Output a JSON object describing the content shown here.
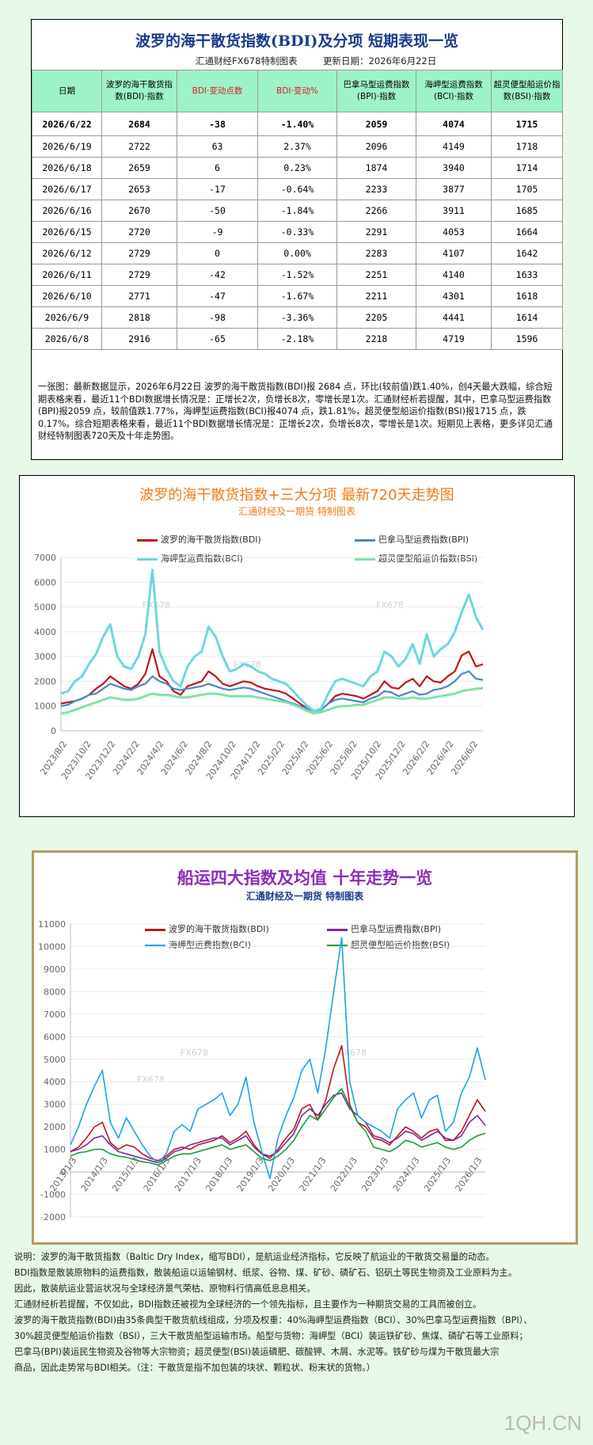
{
  "table_panel": {
    "title": "波罗的海干散货指数(BDI)及分项 短期表现一览",
    "maker": "汇通财经FX678特制图表",
    "update_date": "更新日期：2026年6月22日",
    "headers": [
      "日期",
      "波罗的海干散货指数(BDI)·指数",
      "BDI·变动点数",
      "BDI·变动%",
      "巴拿马型运费指数(BPI)·指数",
      "海岬型运费指数(BCI)·指数",
      "超灵便型船运价指数(BSI)·指数"
    ],
    "rows": [
      [
        "2026/6/22",
        "2684",
        "-38",
        "-1.40%",
        "2059",
        "4074",
        "1715"
      ],
      [
        "2026/6/19",
        "2722",
        "63",
        "2.37%",
        "2096",
        "4149",
        "1718"
      ],
      [
        "2026/6/18",
        "2659",
        "6",
        "0.23%",
        "1874",
        "3940",
        "1714"
      ],
      [
        "2026/6/17",
        "2653",
        "-17",
        "-0.64%",
        "2233",
        "3877",
        "1705"
      ],
      [
        "2026/6/16",
        "2670",
        "-50",
        "-1.84%",
        "2266",
        "3911",
        "1685"
      ],
      [
        "2026/6/15",
        "2720",
        "-9",
        "-0.33%",
        "2291",
        "4053",
        "1664"
      ],
      [
        "2026/6/12",
        "2729",
        "0",
        "0.00%",
        "2283",
        "4107",
        "1642"
      ],
      [
        "2026/6/11",
        "2729",
        "-42",
        "-1.52%",
        "2251",
        "4140",
        "1633"
      ],
      [
        "2026/6/10",
        "2771",
        "-47",
        "-1.67%",
        "2211",
        "4301",
        "1618"
      ],
      [
        "2026/6/9",
        "2818",
        "-98",
        "-3.36%",
        "2205",
        "4441",
        "1614"
      ],
      [
        "2026/6/8",
        "2916",
        "-65",
        "-2.18%",
        "2218",
        "4719",
        "1596"
      ]
    ],
    "analysis": "一张图：最新数据显示，2026年6月22日 波罗的海干散货指数(BDI)报 2684 点，环比(较前值)跌1.40%，创4天最大跌幅，综合短期表格来看，最近11个BDI数据增长情况是：正增长2次，负增长8次，零增长是1次。汇通财经析若提醒，其中，巴拿马型运费指数(BPI)报2059 点，较前值跌1.77%，海岬型运费指数(BCI)报4074 点，跌1.81%，超灵便型船运价指数(BSI)报1715 点，跌0.17%。综合短期表格来看，最近11个BDI数据增长情况是：正增长2次，负增长8次，零增长是1次。短期见上表格，更多详见汇通财经特制图表720天及十年走势图。"
  },
  "chart_data": [
    {
      "type": "line",
      "title": "波罗的海干散货指数+三大分项 最新720天走势图",
      "subtitle": "汇通财经及一期货 特制图表",
      "watermark": "FX678",
      "ylim": [
        0,
        7000
      ],
      "yticks": [
        0,
        1000,
        2000,
        3000,
        4000,
        5000,
        6000,
        7000
      ],
      "x_ticks": [
        "2023/8/2",
        "2023/10/2",
        "2023/12/2",
        "2024/2/2",
        "2024/4/2",
        "2024/6/2",
        "2024/8/2",
        "2024/10/2",
        "2024/12/2",
        "2025/2/2",
        "2025/4/2",
        "2025/6/2",
        "2025/8/2",
        "2025/10/2",
        "2025/12/2",
        "2026/2/2",
        "2026/4/2",
        "2026/6/2"
      ],
      "x_index_range": [
        0,
        60
      ],
      "series": [
        {
          "name": "波罗的海干散货指数(BDI)",
          "color": "#c0161b",
          "values": [
            1100,
            1150,
            1200,
            1300,
            1450,
            1700,
            1900,
            2200,
            2000,
            1800,
            1700,
            1900,
            2300,
            3300,
            2200,
            2000,
            1600,
            1450,
            1800,
            1900,
            2000,
            2400,
            2200,
            1900,
            1800,
            1900,
            2000,
            1950,
            1800,
            1700,
            1650,
            1600,
            1500,
            1300,
            1100,
            900,
            800,
            850,
            1100,
            1400,
            1500,
            1450,
            1400,
            1300,
            1450,
            1600,
            2000,
            1750,
            1700,
            1950,
            2100,
            1800,
            2200,
            2000,
            1950,
            2200,
            2400,
            3050,
            3200,
            2600,
            2684
          ]
        },
        {
          "name": "巴拿马型运费指数(BPI)",
          "color": "#4a86c8",
          "values": [
            1000,
            1050,
            1200,
            1300,
            1450,
            1500,
            1700,
            1900,
            1800,
            1700,
            1650,
            1800,
            1900,
            2200,
            2000,
            1900,
            1700,
            1650,
            1700,
            1750,
            1800,
            1900,
            1800,
            1700,
            1650,
            1700,
            1750,
            1700,
            1600,
            1500,
            1400,
            1300,
            1200,
            1100,
            1000,
            900,
            800,
            850,
            1100,
            1250,
            1300,
            1250,
            1200,
            1150,
            1300,
            1400,
            1600,
            1550,
            1400,
            1500,
            1600,
            1450,
            1500,
            1650,
            1700,
            1800,
            2000,
            2300,
            2400,
            2100,
            2059
          ]
        },
        {
          "name": "海岬型运费指数(BCI)",
          "color": "#6ed6de",
          "values": [
            1500,
            1600,
            2000,
            2200,
            2700,
            3100,
            3800,
            4300,
            3000,
            2600,
            2500,
            3000,
            3900,
            6500,
            3200,
            2500,
            2000,
            1800,
            2600,
            3000,
            3200,
            4200,
            3800,
            3000,
            2400,
            2500,
            2700,
            2600,
            2400,
            2300,
            2100,
            2000,
            1900,
            1600,
            1300,
            1000,
            800,
            900,
            1500,
            2000,
            2100,
            2000,
            1900,
            1800,
            2200,
            2400,
            3200,
            3000,
            2600,
            2900,
            3500,
            2700,
            3900,
            3000,
            3300,
            3500,
            4000,
            4800,
            5500,
            4600,
            4074
          ]
        },
        {
          "name": "超灵便型船运价指数(BSI)",
          "color": "#7ee3a8",
          "values": [
            700,
            750,
            850,
            950,
            1050,
            1150,
            1250,
            1350,
            1300,
            1250,
            1250,
            1300,
            1400,
            1500,
            1450,
            1450,
            1400,
            1350,
            1350,
            1400,
            1450,
            1500,
            1500,
            1450,
            1400,
            1400,
            1400,
            1400,
            1350,
            1300,
            1250,
            1200,
            1150,
            1050,
            950,
            800,
            700,
            750,
            850,
            950,
            1000,
            1000,
            1050,
            1050,
            1150,
            1250,
            1350,
            1350,
            1300,
            1300,
            1350,
            1300,
            1300,
            1350,
            1400,
            1450,
            1500,
            1600,
            1650,
            1700,
            1715
          ]
        }
      ]
    },
    {
      "type": "line",
      "title": "船运四大指数及均值 十年走势一览",
      "subtitle": "汇通财经及一期货 特制图表",
      "watermark": "FX678",
      "ylim": [
        -2000,
        11000
      ],
      "yticks": [
        -2000,
        -1000,
        0,
        1000,
        2000,
        3000,
        4000,
        5000,
        6000,
        7000,
        8000,
        9000,
        10000,
        11000
      ],
      "x_ticks": [
        "2013/1/3",
        "2014/1/3",
        "2015/1/3",
        "2016/1/3",
        "2017/1/3",
        "2018/1/3",
        "2019/1/3",
        "2020/1/3",
        "2021/1/3",
        "2022/1/3",
        "2023/1/3",
        "2024/1/3",
        "2025/1/3",
        "2026/1/3"
      ],
      "x_index_range": [
        0,
        52
      ],
      "series": [
        {
          "name": "波罗的海干散货指数(BDI)",
          "color": "#c0161b",
          "values": [
            900,
            1100,
            1500,
            2000,
            2200,
            1300,
            1000,
            1200,
            1100,
            800,
            600,
            500,
            700,
            1000,
            1100,
            1000,
            1200,
            1300,
            1400,
            1600,
            1300,
            1500,
            1800,
            1200,
            800,
            600,
            1000,
            1500,
            1900,
            2800,
            3000,
            2300,
            3200,
            4600,
            5600,
            3000,
            2200,
            2000,
            1500,
            1400,
            1200,
            1600,
            2000,
            1800,
            1500,
            1800,
            1900,
            1400,
            1400,
            1800,
            2500,
            3200,
            2684
          ]
        },
        {
          "name": "巴拿马型运费指数(BPI)",
          "color": "#7a2aa0",
          "values": [
            900,
            1000,
            1200,
            1500,
            1600,
            1200,
            900,
            800,
            700,
            600,
            500,
            400,
            600,
            900,
            1000,
            1200,
            1300,
            1400,
            1500,
            1500,
            1200,
            1400,
            1600,
            1100,
            800,
            700,
            900,
            1300,
            1700,
            2500,
            2800,
            2500,
            3000,
            3400,
            3500,
            2800,
            2500,
            2200,
            1600,
            1500,
            1300,
            1500,
            1800,
            1700,
            1400,
            1600,
            1800,
            1500,
            1400,
            1600,
            2200,
            2500,
            2059
          ]
        },
        {
          "name": "海岬型运费指数(BCI)",
          "color": "#1aa3e8",
          "values": [
            1200,
            2000,
            3000,
            3800,
            4500,
            2200,
            1500,
            2400,
            1800,
            1200,
            700,
            400,
            800,
            1800,
            2100,
            1800,
            2800,
            3000,
            3200,
            3500,
            2500,
            3000,
            4200,
            2200,
            900,
            -300,
            1500,
            2500,
            3300,
            4500,
            5000,
            3500,
            5500,
            8000,
            10400,
            4000,
            2500,
            2200,
            2000,
            1800,
            1500,
            2800,
            3200,
            3500,
            2400,
            3200,
            3400,
            1800,
            2200,
            3500,
            4200,
            5500,
            4074
          ]
        },
        {
          "name": "超灵便型船运价指数(BSI)",
          "color": "#13a038",
          "values": [
            700,
            850,
            900,
            1000,
            1000,
            800,
            700,
            650,
            550,
            450,
            400,
            300,
            500,
            700,
            800,
            800,
            900,
            1000,
            1100,
            1200,
            1000,
            1100,
            1200,
            900,
            600,
            500,
            700,
            1000,
            1400,
            2000,
            2500,
            2300,
            2800,
            3300,
            3700,
            2900,
            2200,
            1800,
            1100,
            1000,
            900,
            1100,
            1400,
            1300,
            1100,
            1200,
            1300,
            1100,
            1000,
            1100,
            1400,
            1600,
            1715
          ]
        }
      ]
    }
  ],
  "notes": [
    "说明：波罗的海干散货指数（Baltic Dry Index，缩写BDI），是航运业经济指标，它反映了航运业的干散货交易量的动态。",
    "BDI指数是散装原物料的运费指数，散装船运以运输钢材、纸浆、谷物、煤、矿砂、磷矿石、铝矾土等民生物资及工业原料为主。",
    "因此，散装航运业营运状况与全球经济景气荣枯、原物料行情高低息息相关。",
    "汇通财经析若提醒，不仅如此，BDI指数还被视为全球经济的一个领先指标，且主要作为一种期货交易的工具而被创立。",
    "波罗的海干散货指数(BDI)由35条典型干散货航线组成，分项及权重：40%海岬型运费指数（BCI）、30%巴拿马型运费指数（BPI）、",
    "30%超灵便型船运价指数（BSI），三大干散货船型运输市场。船型与货物：海岬型（BCI）装运铁矿砂、焦煤、磷矿石等工业原料；",
    "巴拿马(BPI)装运民生物资及谷物等大宗物资；超灵便型(BSI)装运磷肥、碳酸钾、木屑、水泥等。铁矿砂与煤为干散货最大宗",
    "商品，因此走势常与BDI相关。（注：干散货是指不加包装的块状、颗粒状、粉末状的货物。）"
  ],
  "brand": "1QH.CN"
}
